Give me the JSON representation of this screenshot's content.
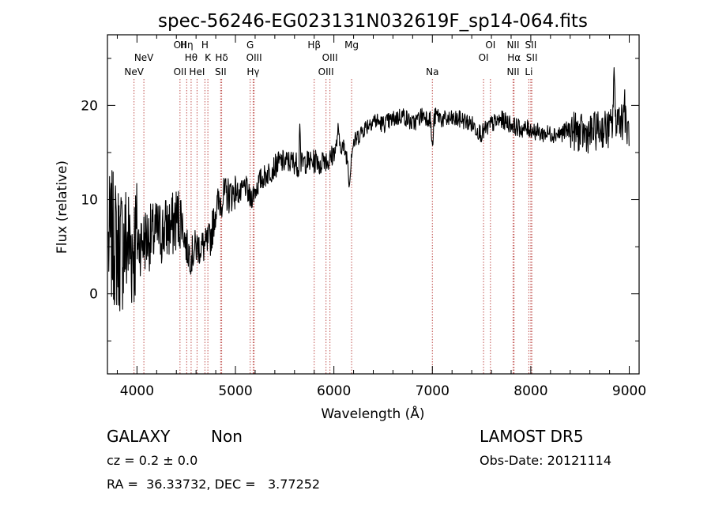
{
  "chart_data": {
    "type": "line",
    "title": "spec-56246-EG023131N032619F_sp14-064.fits",
    "xlabel": "Wavelength (Å)",
    "ylabel": "Flux (relative)",
    "xlim": [
      3700,
      9100
    ],
    "ylim": [
      -8.5,
      27.5
    ],
    "xticks": [
      4000,
      5000,
      6000,
      7000,
      8000,
      9000
    ],
    "yticks": [
      0,
      10,
      20
    ],
    "grid": false,
    "line_color": "#000000",
    "marker_color": "#c0504d",
    "anchors": [
      [
        3700,
        5
      ],
      [
        3750,
        6
      ],
      [
        3800,
        5
      ],
      [
        3850,
        5
      ],
      [
        3900,
        5.5
      ],
      [
        3950,
        5
      ],
      [
        4000,
        5.5
      ],
      [
        4050,
        5.5
      ],
      [
        4100,
        6
      ],
      [
        4150,
        6
      ],
      [
        4200,
        6.5
      ],
      [
        4250,
        6.5
      ],
      [
        4300,
        7
      ],
      [
        4350,
        7
      ],
      [
        4400,
        8
      ],
      [
        4450,
        8
      ],
      [
        4500,
        5
      ],
      [
        4550,
        4
      ],
      [
        4600,
        5
      ],
      [
        4650,
        5
      ],
      [
        4700,
        5
      ],
      [
        4750,
        6
      ],
      [
        4800,
        9
      ],
      [
        4850,
        10
      ],
      [
        4900,
        10.5
      ],
      [
        4950,
        10.5
      ],
      [
        5000,
        11
      ],
      [
        5050,
        10.5
      ],
      [
        5100,
        11.5
      ],
      [
        5150,
        10
      ],
      [
        5200,
        11
      ],
      [
        5250,
        12
      ],
      [
        5300,
        12.5
      ],
      [
        5350,
        13
      ],
      [
        5400,
        13.5
      ],
      [
        5450,
        14
      ],
      [
        5500,
        14
      ],
      [
        5550,
        14
      ],
      [
        5600,
        14
      ],
      [
        5650,
        13.5
      ],
      [
        5700,
        14
      ],
      [
        5800,
        14
      ],
      [
        5850,
        14.5
      ],
      [
        5900,
        14.5
      ],
      [
        5950,
        14
      ],
      [
        6000,
        15
      ],
      [
        6050,
        16
      ],
      [
        6100,
        15.5
      ],
      [
        6150,
        14
      ],
      [
        6200,
        16
      ],
      [
        6300,
        17.5
      ],
      [
        6400,
        18.5
      ],
      [
        6500,
        18
      ],
      [
        6600,
        18.5
      ],
      [
        6700,
        19
      ],
      [
        6800,
        18
      ],
      [
        6900,
        19
      ],
      [
        7000,
        18.5
      ],
      [
        7050,
        19
      ],
      [
        7100,
        18.5
      ],
      [
        7200,
        18.5
      ],
      [
        7300,
        18.5
      ],
      [
        7400,
        18
      ],
      [
        7450,
        17.5
      ],
      [
        7500,
        17
      ],
      [
        7550,
        17.5
      ],
      [
        7600,
        18
      ],
      [
        7700,
        18.5
      ],
      [
        7800,
        18
      ],
      [
        7900,
        17.5
      ],
      [
        8000,
        17.5
      ],
      [
        8100,
        17
      ],
      [
        8200,
        17
      ],
      [
        8300,
        17
      ],
      [
        8400,
        17.5
      ],
      [
        8500,
        17
      ],
      [
        8600,
        17
      ],
      [
        8700,
        17.5
      ],
      [
        8800,
        17.5
      ],
      [
        8900,
        19
      ],
      [
        9000,
        17
      ]
    ],
    "features": [
      {
        "x": 6040,
        "value": 1.5,
        "width": 10
      },
      {
        "x": 6160,
        "value": -2.5,
        "width": 12
      },
      {
        "x": 5860,
        "value": -1.5,
        "width": 12
      },
      {
        "x": 5655,
        "value": 5.5,
        "width": 6
      },
      {
        "x": 7000,
        "value": -3.0,
        "width": 12
      },
      {
        "x": 8845,
        "value": 6.0,
        "width": 8
      },
      {
        "x": 8950,
        "value": 3.0,
        "width": 8
      }
    ],
    "lines": [
      {
        "name": "NeV",
        "x": 3970,
        "row": 2
      },
      {
        "name": "NeV",
        "x": 4070,
        "row": 1
      },
      {
        "name": "OII",
        "x": 4437,
        "row": 0
      },
      {
        "name": "OII",
        "x": 4437,
        "row": 2
      },
      {
        "name": "Hη",
        "x": 4505,
        "row": 0
      },
      {
        "name": "Hθ",
        "x": 4550,
        "row": 1
      },
      {
        "name": "HeI",
        "x": 4610,
        "row": 2
      },
      {
        "name": "H",
        "x": 4690,
        "row": 0
      },
      {
        "name": "K",
        "x": 4720,
        "row": 1
      },
      {
        "name": "Hδ",
        "x": 4860,
        "row": 1
      },
      {
        "name": "SII",
        "x": 4850,
        "row": 2
      },
      {
        "name": "G",
        "x": 5150,
        "row": 0
      },
      {
        "name": "OIII",
        "x": 5190,
        "row": 1
      },
      {
        "name": "Hγ",
        "x": 5180,
        "row": 2
      },
      {
        "name": "Hβ",
        "x": 5800,
        "row": 0
      },
      {
        "name": "OIII",
        "x": 5960,
        "row": 1
      },
      {
        "name": "OIII",
        "x": 5920,
        "row": 2
      },
      {
        "name": "Mg",
        "x": 6180,
        "row": 0
      },
      {
        "name": "Na",
        "x": 7000,
        "row": 2
      },
      {
        "name": "OI",
        "x": 7590,
        "row": 0
      },
      {
        "name": "OI",
        "x": 7520,
        "row": 1
      },
      {
        "name": "NII",
        "x": 7820,
        "row": 0
      },
      {
        "name": "Hα",
        "x": 7830,
        "row": 1
      },
      {
        "name": "NII",
        "x": 7820,
        "row": 2
      },
      {
        "name": "SII",
        "x": 8000,
        "row": 0
      },
      {
        "name": "SII",
        "x": 8010,
        "row": 1
      },
      {
        "name": "Li",
        "x": 7980,
        "row": 2
      }
    ]
  },
  "footer": {
    "object_class": "GALAXY",
    "subclass": "Non",
    "survey": "LAMOST DR5",
    "cz": "cz = 0.2 ± 0.0",
    "obs_date": "Obs-Date: 20121114",
    "coords": "RA =  36.33732, DEC =   3.77252"
  }
}
